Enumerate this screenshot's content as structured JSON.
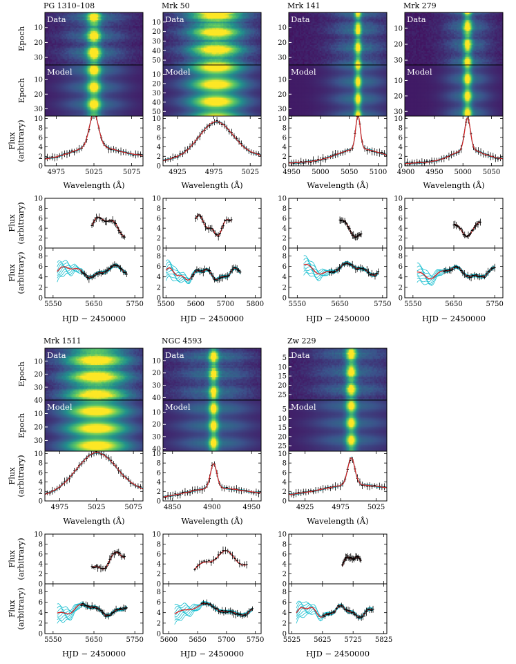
{
  "figure": {
    "flux_axis_label": [
      "Flux",
      "(arbitrary)"
    ],
    "upper_flux_axis_label": [
      "Flux",
      "(arbitrary)"
    ],
    "epoch_axis_label": "Epoch",
    "wavelength_axis_label": "Wavelength (Å)",
    "time_axis_label": "HJD − 2450000",
    "data_tag": "Data",
    "model_tag": "Model",
    "colors": {
      "data_points": "#000000",
      "model_line": "#d62728",
      "model_samples": "#17becf",
      "map_low": "#440154",
      "map_high": "#fde725"
    }
  },
  "chart_data": [
    {
      "type": "heatmap_spectrum_lightcurve",
      "object": "PG 1310–108",
      "epochs_data": [
        10,
        20,
        30
      ],
      "epoch_max": 35,
      "epochs_model": [
        10,
        20,
        30
      ],
      "line_center": 5025,
      "line_width": 6,
      "wing_width": 30,
      "wing_amp": 0.35,
      "spectrum": {
        "xticks": [
          4975,
          5025,
          5075
        ],
        "xlim": [
          4960,
          5090
        ],
        "yticks": [
          0,
          2,
          4,
          6,
          8,
          10
        ],
        "ylim": [
          0,
          10.5
        ],
        "peak": 9.8,
        "base": 1.2
      },
      "cont": {
        "xticks": [
          5650,
          5750
        ],
        "yticks": [
          0,
          2,
          4,
          6,
          8,
          10
        ],
        "ylim": [
          0,
          10
        ],
        "start": 5645,
        "end": 5725,
        "level": 4.5
      },
      "line": {
        "xticks": [
          5550,
          5650,
          5750
        ],
        "xlim": [
          5530,
          5770
        ],
        "yticks": [
          0,
          2,
          4,
          6,
          8
        ],
        "ylim": [
          0,
          9.5
        ],
        "start": 5560,
        "end": 5730,
        "level": 5
      },
      "xlim_cont": [
        5530,
        5770
      ]
    },
    {
      "type": "heatmap_spectrum_lightcurve",
      "object": "Mrk 50",
      "epochs_data": [
        10,
        20,
        30,
        40,
        50
      ],
      "epoch_max": 55,
      "epochs_model": [
        10,
        20,
        30,
        40,
        50
      ],
      "line_center": 4978,
      "line_width": 22,
      "wing_width": 45,
      "wing_amp": 0.3,
      "spectrum": {
        "xticks": [
          4925,
          4975,
          5025
        ],
        "xlim": [
          4905,
          5040
        ],
        "yticks": [
          0,
          2,
          4,
          6,
          8,
          10
        ],
        "ylim": [
          0,
          10.5
        ],
        "peak": 8.2,
        "base": 0.6
      },
      "cont": {
        "xticks": [
          5500,
          5600,
          5700,
          5800
        ],
        "yticks": [
          0,
          2,
          4,
          6,
          8,
          10
        ],
        "ylim": [
          0,
          10
        ],
        "start": 5600,
        "end": 5720,
        "level": 4.5
      },
      "line": {
        "xticks": [
          5500,
          5600,
          5700,
          5800
        ],
        "xlim": [
          5490,
          5820
        ],
        "yticks": [
          0,
          2,
          4,
          6,
          8
        ],
        "ylim": [
          0,
          9.5
        ],
        "start": 5500,
        "end": 5750,
        "level": 4.5
      },
      "xlim_cont": [
        5490,
        5820
      ]
    },
    {
      "type": "heatmap_spectrum_lightcurve",
      "object": "Mrk 141",
      "epochs_data": [
        10,
        20,
        30
      ],
      "epoch_max": 35,
      "epochs_model": [
        10,
        20,
        30
      ],
      "line_center": 5065,
      "line_width": 4,
      "wing_width": 35,
      "wing_amp": 0.35,
      "spectrum": {
        "xticks": [
          4950,
          5000,
          5050,
          5100
        ],
        "xlim": [
          4945,
          5115
        ],
        "yticks": [
          0,
          2,
          4,
          6,
          8,
          10
        ],
        "ylim": [
          0,
          10.5
        ],
        "peak": 9.2,
        "base": 0.6
      },
      "cont": {
        "xticks": [
          5550,
          5650,
          5750
        ],
        "yticks": [
          0,
          2,
          4,
          6,
          8,
          10
        ],
        "ylim": [
          0,
          10
        ],
        "start": 5650,
        "end": 5700,
        "level": 4.0
      },
      "line": {
        "xticks": [
          5550,
          5650,
          5750
        ],
        "xlim": [
          5530,
          5760
        ],
        "yticks": [
          0,
          2,
          4,
          6,
          8
        ],
        "ylim": [
          0,
          9.5
        ],
        "start": 5565,
        "end": 5740,
        "level": 5.5
      },
      "xlim_cont": [
        5530,
        5760
      ]
    },
    {
      "type": "heatmap_spectrum_lightcurve",
      "object": "Mrk 279",
      "epochs_data": [
        10,
        20,
        30
      ],
      "epoch_max": 33,
      "epochs_model": [
        10,
        20,
        30
      ],
      "line_center": 5008,
      "line_width": 5,
      "wing_width": 28,
      "wing_amp": 0.35,
      "spectrum": {
        "xticks": [
          4900,
          4950,
          5000,
          5050
        ],
        "xlim": [
          4898,
          5070
        ],
        "yticks": [
          0,
          2,
          4,
          6,
          8,
          10
        ],
        "ylim": [
          0,
          10.5
        ],
        "peak": 8.8,
        "base": 0.5
      },
      "cont": {
        "xticks": [
          5550,
          5650,
          5750
        ],
        "yticks": [
          0,
          2,
          4,
          6,
          8,
          10
        ],
        "ylim": [
          0,
          10
        ],
        "start": 5650,
        "end": 5715,
        "level": 4.5
      },
      "line": {
        "xticks": [
          5550,
          5650,
          5750
        ],
        "xlim": [
          5530,
          5770
        ],
        "yticks": [
          0,
          2,
          4,
          6,
          8
        ],
        "ylim": [
          0,
          9.5
        ],
        "start": 5560,
        "end": 5750,
        "level": 4.8
      },
      "xlim_cont": [
        5530,
        5770
      ]
    },
    {
      "type": "heatmap_spectrum_lightcurve",
      "object": "Mrk 1511",
      "epochs_data": [
        10,
        20,
        30,
        40
      ],
      "epoch_max": 40,
      "epochs_model": [
        10,
        20,
        30
      ],
      "epoch_max_model": 38,
      "line_center": 5025,
      "line_width": 26,
      "wing_width": 45,
      "wing_amp": 0.3,
      "spectrum": {
        "xticks": [
          4975,
          5025,
          5075
        ],
        "xlim": [
          4955,
          5088
        ],
        "yticks": [
          0,
          2,
          4,
          6,
          8,
          10
        ],
        "ylim": [
          0,
          10.5
        ],
        "peak": 9.0,
        "base": 0.6
      },
      "cont": {
        "xticks": [
          5550,
          5650,
          5750
        ],
        "yticks": [
          0,
          2,
          4,
          6,
          8,
          10
        ],
        "ylim": [
          0,
          10
        ],
        "start": 5645,
        "end": 5725,
        "level": 4.5
      },
      "line": {
        "xticks": [
          5550,
          5650,
          5750
        ],
        "xlim": [
          5530,
          5770
        ],
        "yticks": [
          0,
          2,
          4,
          6,
          8
        ],
        "ylim": [
          0,
          9.5
        ],
        "start": 5560,
        "end": 5730,
        "level": 4.6
      },
      "xlim_cont": [
        5530,
        5770
      ]
    },
    {
      "type": "heatmap_spectrum_lightcurve",
      "object": "NGC 4593",
      "epochs_data": [
        10,
        20,
        30,
        40
      ],
      "epoch_max": 42,
      "epochs_model": [
        10,
        20,
        30,
        40
      ],
      "line_center": 4902,
      "line_width": 4,
      "wing_width": 35,
      "wing_amp": 0.35,
      "spectrum": {
        "xticks": [
          4850,
          4900,
          4950
        ],
        "xlim": [
          4838,
          4962
        ],
        "yticks": [
          0,
          2,
          4,
          6,
          8,
          10
        ],
        "ylim": [
          0,
          10.5
        ],
        "peak": 6.8,
        "base": 0.5
      },
      "cont": {
        "xticks": [
          5600,
          5650,
          5700,
          5750
        ],
        "yticks": [
          0,
          2,
          4,
          6,
          8,
          10
        ],
        "ylim": [
          0,
          10
        ],
        "start": 5645,
        "end": 5735,
        "level": 4.5
      },
      "line": {
        "xticks": [
          5600,
          5650,
          5700,
          5750
        ],
        "xlim": [
          5590,
          5760
        ],
        "yticks": [
          0,
          2,
          4,
          6,
          8
        ],
        "ylim": [
          0,
          9.5
        ],
        "start": 5610,
        "end": 5745,
        "level": 4.6
      },
      "xlim_cont": [
        5590,
        5760
      ]
    },
    {
      "type": "heatmap_spectrum_lightcurve",
      "object": "Zw 229",
      "epochs_data": [
        5,
        10,
        15,
        20,
        25
      ],
      "epoch_max": 28,
      "epochs_model": [
        5,
        10,
        15,
        20,
        25
      ],
      "line_center": 4990,
      "line_width": 5,
      "wing_width": 40,
      "wing_amp": 0.3,
      "spectrum": {
        "xticks": [
          4925,
          4975,
          5025
        ],
        "xlim": [
          4902,
          5040
        ],
        "yticks": [
          0,
          2,
          4,
          6,
          8,
          10
        ],
        "ylim": [
          0,
          10.5
        ],
        "peak": 8.0,
        "base": 1.2
      },
      "cont": {
        "xticks": [
          5525,
          5625,
          5725,
          5825
        ],
        "yticks": [
          0,
          2,
          4,
          6,
          8,
          10
        ],
        "ylim": [
          0,
          10
        ],
        "start": 5690,
        "end": 5750,
        "level": 4.0
      },
      "line": {
        "xticks": [
          5525,
          5625,
          5725,
          5825
        ],
        "xlim": [
          5515,
          5835
        ],
        "yticks": [
          0,
          2,
          4,
          6,
          8
        ],
        "ylim": [
          0,
          9.5
        ],
        "start": 5540,
        "end": 5790,
        "level": 4.2
      },
      "xlim_cont": [
        5515,
        5835
      ]
    }
  ]
}
